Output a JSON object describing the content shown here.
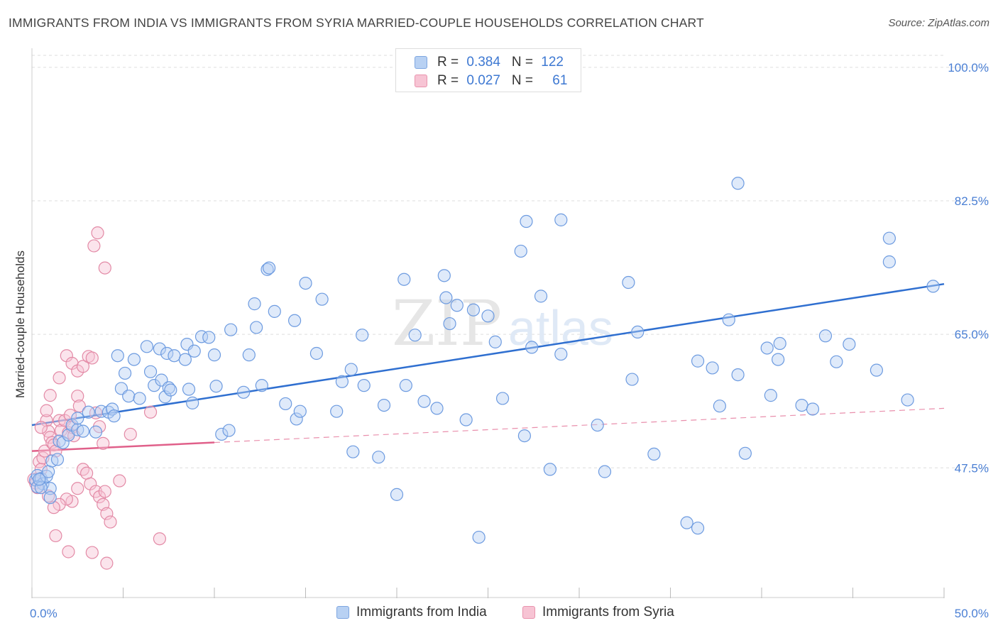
{
  "header": {
    "title": "IMMIGRANTS FROM INDIA VS IMMIGRANTS FROM SYRIA MARRIED-COUPLE HOUSEHOLDS CORRELATION CHART",
    "source": "Source: ZipAtlas.com"
  },
  "stats": {
    "india": {
      "r_label": "R = ",
      "r_value": "0.384",
      "n_label": "N = ",
      "n_value": "122"
    },
    "syria": {
      "r_label": "R = ",
      "r_value": "0.027",
      "n_label": "N = ",
      "n_value": "61"
    }
  },
  "legend": {
    "india": "Immigrants from India",
    "syria": "Immigrants from Syria"
  },
  "colors": {
    "india_fill": "#b8d1f3",
    "india_stroke": "#6d9be0",
    "india_line": "#2f6fd0",
    "syria_fill": "#f7c4d4",
    "syria_stroke": "#e38aa6",
    "syria_line": "#e0608a",
    "tick_label": "#4a7fd4",
    "grid": "#dddddd"
  },
  "watermark": {
    "a": "ZIP",
    "b": "atlas"
  },
  "chart_data": {
    "type": "scatter",
    "title": "IMMIGRANTS FROM INDIA VS IMMIGRANTS FROM SYRIA MARRIED-COUPLE HOUSEHOLDS CORRELATION CHART",
    "xlabel": "",
    "ylabel": "Married-couple Households",
    "xlim": [
      0,
      50
    ],
    "ylim": [
      30.5,
      102.5
    ],
    "x_tick_labels": [
      "0.0%",
      "50.0%"
    ],
    "y_ticks": [
      47.5,
      65.0,
      82.5,
      100.0
    ],
    "y_tick_labels": [
      "47.5%",
      "65.0%",
      "82.5%",
      "100.0%"
    ],
    "grid": true,
    "legend_position": "bottom-center",
    "series": [
      {
        "name": "Immigrants from India",
        "r": 0.384,
        "n": 122,
        "trend": {
          "x": [
            0,
            50
          ],
          "y": [
            53.1,
            71.6
          ],
          "style": "solid"
        },
        "points": [
          [
            0.2,
            45.9
          ],
          [
            0.3,
            46.5
          ],
          [
            0.5,
            46.1
          ],
          [
            0.6,
            45.4
          ],
          [
            0.3,
            45.0
          ],
          [
            0.8,
            46.4
          ],
          [
            1.0,
            44.8
          ],
          [
            0.5,
            44.9
          ],
          [
            0.4,
            46.0
          ],
          [
            0.9,
            47.0
          ],
          [
            1.0,
            43.6
          ],
          [
            1.1,
            48.4
          ],
          [
            1.4,
            48.6
          ],
          [
            1.5,
            51.0
          ],
          [
            1.7,
            50.8
          ],
          [
            2.0,
            51.8
          ],
          [
            2.2,
            53.1
          ],
          [
            2.5,
            52.5
          ],
          [
            2.5,
            54.0
          ],
          [
            2.8,
            52.3
          ],
          [
            3.1,
            54.8
          ],
          [
            3.5,
            52.2
          ],
          [
            3.8,
            54.9
          ],
          [
            4.2,
            54.8
          ],
          [
            4.4,
            55.2
          ],
          [
            4.5,
            54.3
          ],
          [
            4.7,
            62.2
          ],
          [
            4.9,
            57.9
          ],
          [
            5.1,
            59.9
          ],
          [
            5.3,
            56.9
          ],
          [
            5.6,
            61.7
          ],
          [
            5.9,
            56.6
          ],
          [
            6.3,
            63.4
          ],
          [
            6.5,
            60.1
          ],
          [
            6.7,
            58.3
          ],
          [
            7.0,
            63.1
          ],
          [
            7.1,
            59.0
          ],
          [
            7.3,
            56.8
          ],
          [
            7.4,
            62.5
          ],
          [
            7.5,
            58.0
          ],
          [
            7.6,
            57.7
          ],
          [
            7.8,
            62.2
          ],
          [
            8.4,
            61.7
          ],
          [
            8.5,
            63.7
          ],
          [
            8.6,
            57.8
          ],
          [
            8.8,
            56.0
          ],
          [
            8.9,
            62.8
          ],
          [
            9.3,
            64.7
          ],
          [
            9.7,
            64.6
          ],
          [
            10.0,
            62.3
          ],
          [
            10.1,
            58.2
          ],
          [
            10.4,
            51.9
          ],
          [
            10.8,
            52.4
          ],
          [
            10.9,
            65.6
          ],
          [
            11.6,
            57.4
          ],
          [
            11.9,
            62.3
          ],
          [
            12.2,
            69.0
          ],
          [
            12.3,
            65.9
          ],
          [
            12.6,
            58.3
          ],
          [
            12.9,
            73.5
          ],
          [
            13.0,
            73.7
          ],
          [
            13.3,
            68.0
          ],
          [
            13.9,
            55.9
          ],
          [
            14.4,
            66.8
          ],
          [
            14.5,
            53.9
          ],
          [
            14.7,
            54.9
          ],
          [
            15.0,
            71.7
          ],
          [
            15.6,
            62.5
          ],
          [
            15.9,
            69.6
          ],
          [
            16.7,
            54.9
          ],
          [
            17.0,
            58.8
          ],
          [
            17.5,
            60.4
          ],
          [
            17.6,
            49.6
          ],
          [
            18.1,
            64.9
          ],
          [
            18.2,
            58.3
          ],
          [
            19.0,
            48.9
          ],
          [
            19.3,
            55.7
          ],
          [
            20.0,
            44.0
          ],
          [
            20.4,
            72.2
          ],
          [
            20.5,
            58.3
          ],
          [
            21.0,
            64.9
          ],
          [
            21.5,
            56.2
          ],
          [
            22.2,
            55.3
          ],
          [
            22.6,
            72.7
          ],
          [
            22.7,
            69.8
          ],
          [
            22.9,
            66.4
          ],
          [
            23.3,
            68.8
          ],
          [
            23.8,
            53.8
          ],
          [
            24.2,
            68.2
          ],
          [
            24.5,
            38.4
          ],
          [
            25.0,
            67.4
          ],
          [
            25.4,
            64.0
          ],
          [
            25.8,
            56.6
          ],
          [
            26.8,
            75.9
          ],
          [
            27.0,
            51.7
          ],
          [
            27.1,
            79.8
          ],
          [
            27.4,
            63.3
          ],
          [
            27.9,
            70.0
          ],
          [
            28.4,
            47.3
          ],
          [
            29.0,
            80.0
          ],
          [
            29.0,
            62.4
          ],
          [
            31.0,
            53.1
          ],
          [
            31.4,
            47.0
          ],
          [
            32.7,
            71.8
          ],
          [
            32.9,
            59.1
          ],
          [
            33.2,
            65.3
          ],
          [
            34.1,
            49.3
          ],
          [
            35.9,
            40.3
          ],
          [
            36.5,
            61.5
          ],
          [
            36.5,
            39.6
          ],
          [
            37.3,
            60.6
          ],
          [
            37.7,
            55.6
          ],
          [
            38.2,
            66.9
          ],
          [
            38.7,
            59.7
          ],
          [
            38.7,
            84.8
          ],
          [
            39.1,
            49.4
          ],
          [
            40.3,
            63.2
          ],
          [
            40.5,
            57.0
          ],
          [
            40.9,
            61.7
          ],
          [
            41.0,
            63.8
          ],
          [
            42.2,
            55.7
          ],
          [
            42.8,
            55.2
          ],
          [
            43.5,
            64.8
          ],
          [
            44.1,
            61.4
          ],
          [
            44.8,
            63.7
          ],
          [
            46.3,
            60.3
          ],
          [
            47.0,
            77.6
          ],
          [
            47.0,
            74.5
          ],
          [
            48.0,
            56.4
          ],
          [
            49.4,
            71.3
          ]
        ]
      },
      {
        "name": "Immigrants from Syria",
        "r": 0.027,
        "n": 61,
        "trend": {
          "x": [
            0,
            50
          ],
          "y": [
            49.7,
            55.3
          ],
          "style": "solid-then-dashed",
          "solid_until_x": 10
        },
        "points": [
          [
            0.1,
            46.0
          ],
          [
            0.2,
            45.5
          ],
          [
            0.3,
            44.9
          ],
          [
            0.4,
            48.3
          ],
          [
            0.5,
            47.3
          ],
          [
            0.6,
            48.8
          ],
          [
            0.7,
            49.7
          ],
          [
            0.8,
            53.7
          ],
          [
            0.9,
            52.3
          ],
          [
            1.0,
            51.5
          ],
          [
            1.1,
            50.8
          ],
          [
            1.2,
            50.5
          ],
          [
            1.3,
            49.7
          ],
          [
            0.5,
            52.8
          ],
          [
            0.8,
            55.0
          ],
          [
            1.5,
            53.7
          ],
          [
            1.6,
            52.4
          ],
          [
            1.8,
            53.7
          ],
          [
            2.0,
            52.1
          ],
          [
            2.1,
            54.4
          ],
          [
            2.2,
            52.8
          ],
          [
            2.3,
            51.7
          ],
          [
            2.5,
            56.9
          ],
          [
            2.6,
            55.6
          ],
          [
            2.8,
            47.3
          ],
          [
            3.0,
            46.8
          ],
          [
            3.2,
            45.4
          ],
          [
            3.5,
            44.4
          ],
          [
            3.7,
            43.7
          ],
          [
            3.9,
            42.7
          ],
          [
            4.1,
            41.5
          ],
          [
            4.3,
            40.4
          ],
          [
            1.0,
            57.0
          ],
          [
            1.5,
            59.3
          ],
          [
            1.9,
            62.2
          ],
          [
            2.2,
            61.2
          ],
          [
            2.5,
            60.2
          ],
          [
            2.8,
            60.8
          ],
          [
            3.1,
            62.1
          ],
          [
            3.3,
            61.9
          ],
          [
            3.5,
            54.7
          ],
          [
            3.7,
            52.9
          ],
          [
            3.9,
            50.7
          ],
          [
            4.0,
            44.4
          ],
          [
            2.5,
            44.8
          ],
          [
            2.2,
            43.1
          ],
          [
            1.9,
            43.4
          ],
          [
            1.5,
            42.7
          ],
          [
            1.2,
            42.3
          ],
          [
            0.9,
            43.8
          ],
          [
            1.3,
            38.6
          ],
          [
            2.0,
            36.5
          ],
          [
            3.3,
            36.4
          ],
          [
            4.1,
            35.0
          ],
          [
            3.4,
            76.6
          ],
          [
            3.6,
            78.3
          ],
          [
            4.0,
            73.7
          ],
          [
            5.4,
            51.9
          ],
          [
            4.8,
            45.8
          ],
          [
            6.5,
            54.8
          ],
          [
            7.0,
            38.2
          ]
        ]
      }
    ]
  }
}
